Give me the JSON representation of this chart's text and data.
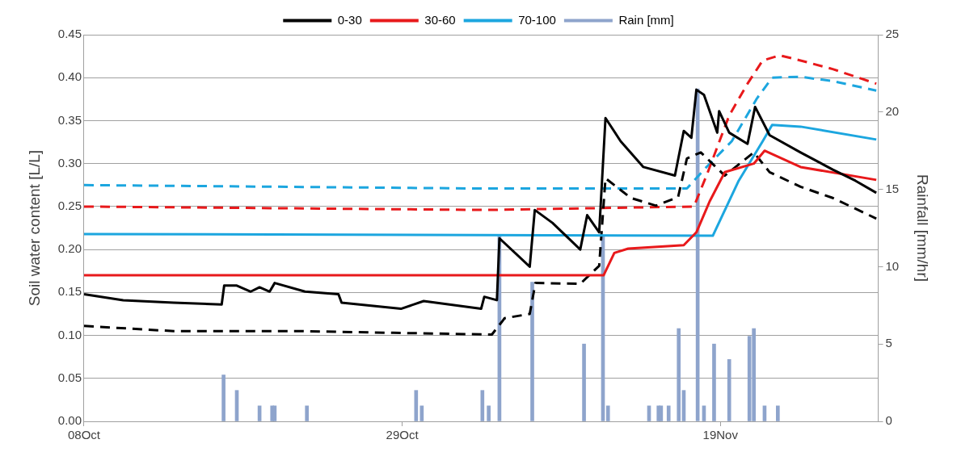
{
  "chart_data": {
    "type": "line",
    "ylabel": "Soil water content [L/L]",
    "y2label": "Rainfall [mm/hr]",
    "legend": "top",
    "grid": "y",
    "xlim": [
      "--10-08",
      "--11-29T10:00"
    ],
    "xticks": [
      {
        "value": "--10-08",
        "label": "08Oct"
      },
      {
        "value": "--10-29",
        "label": "29Oct"
      },
      {
        "value": "--11-19",
        "label": "19Nov"
      }
    ],
    "ylim": [
      0,
      0.45
    ],
    "yticks": [
      {
        "value": 0,
        "label": "0.00"
      },
      {
        "value": 0.05,
        "label": "0.05"
      },
      {
        "value": 0.1,
        "label": "0.10"
      },
      {
        "value": 0.15,
        "label": "0.15"
      },
      {
        "value": 0.2,
        "label": "0.20"
      },
      {
        "value": 0.25,
        "label": "0.25"
      },
      {
        "value": 0.3,
        "label": "0.30"
      },
      {
        "value": 0.35,
        "label": "0.35"
      },
      {
        "value": 0.4,
        "label": "0.40"
      },
      {
        "value": 0.45,
        "label": "0.45"
      }
    ],
    "y2lim": [
      0,
      25
    ],
    "y2ticks": [
      0,
      5,
      10,
      15,
      20,
      25
    ],
    "series": [
      {
        "name": "0-30",
        "color": "#000000",
        "line_style": "solid",
        "x": [
          "--10-08T00:00",
          "--10-10T14:00",
          "--10-13T22:00",
          "--10-17T02:00",
          "--10-17T06:00",
          "--10-18T02:00",
          "--10-19T00:00",
          "--10-19T14:00",
          "--10-20T06:00",
          "--10-20T14:00",
          "--10-22T14:00",
          "--10-24T19:00",
          "--10-25T00:00",
          "--10-28T22:00",
          "--10-30T10:00",
          "--11-03T05:00",
          "--11-03T10:00",
          "--11-04T06:00",
          "--11-04T10:00",
          "--11-06T10:00",
          "--11-06T18:00",
          "--11-07T22:00",
          "--11-09T18:00",
          "--11-10T05:00",
          "--11-11T00:00",
          "--11-11T10:00",
          "--11-12T10:00",
          "--11-13T22:00",
          "--11-16T00:00",
          "--11-16T14:00",
          "--11-17T02:00",
          "--11-17T10:00",
          "--11-17T22:00",
          "--11-18T19:00",
          "--11-18T22:00",
          "--11-19T14:00",
          "--11-20T19:00",
          "--11-21T07:00",
          "--11-22T06:00",
          "--11-24T07:00",
          "--11-26T10:00",
          "--11-27T22:00",
          "--11-29T07:00"
        ],
        "values": [
          0.148,
          0.141,
          0.138,
          0.136,
          0.158,
          0.158,
          0.151,
          0.156,
          0.151,
          0.161,
          0.151,
          0.148,
          0.138,
          0.131,
          0.14,
          0.131,
          0.145,
          0.141,
          0.213,
          0.18,
          0.246,
          0.231,
          0.2,
          0.24,
          0.22,
          0.353,
          0.326,
          0.296,
          0.286,
          0.338,
          0.33,
          0.386,
          0.38,
          0.336,
          0.361,
          0.336,
          0.323,
          0.366,
          0.333,
          0.313,
          0.293,
          0.28,
          0.266
        ]
      },
      {
        "name": "30-60",
        "color": "#e8191b",
        "line_style": "solid",
        "x": [
          "--10-08T00:00",
          "--11-11T07:00",
          "--11-12T00:00",
          "--11-12T22:00",
          "--11-16T14:00",
          "--11-17T10:00",
          "--11-18T07:00",
          "--11-19T07:00",
          "--11-21T05:00",
          "--11-21T22:00",
          "--11-24T07:00",
          "--11-29T07:00"
        ],
        "values": [
          0.17,
          0.17,
          0.196,
          0.201,
          0.205,
          0.22,
          0.256,
          0.29,
          0.3,
          0.315,
          0.296,
          0.281
        ]
      },
      {
        "name": "70-100",
        "color": "#1ca6df",
        "line_style": "solid",
        "x": [
          "--10-08T00:00",
          "--11-18T12:00",
          "--11-20T05:00",
          "--11-21T19:00",
          "--11-22T10:00",
          "--11-24T07:00",
          "--11-29T07:00"
        ],
        "values": [
          0.218,
          0.216,
          0.28,
          0.326,
          0.345,
          0.343,
          0.328
        ]
      },
      {
        "color": "#000000",
        "line_style": "dashed",
        "x": [
          "--10-08T00:00",
          "--10-13T22:00",
          "--10-22T05:00",
          "--10-28T10:00",
          "--11-03T22:00",
          "--11-04T14:00",
          "--11-04T18:00",
          "--11-06T10:00",
          "--11-06T19:00",
          "--11-09T18:00",
          "--11-11T00:00",
          "--11-11T10:00",
          "--11-13T02:00",
          "--11-14T18:00",
          "--11-16T05:00",
          "--11-16T19:00",
          "--11-17T17:00",
          "--11-19T07:00",
          "--11-21T05:00",
          "--11-22T06:00",
          "--11-24T07:00",
          "--11-26T10:00",
          "--11-29T07:00"
        ],
        "values": [
          0.111,
          0.105,
          0.105,
          0.103,
          0.101,
          0.116,
          0.12,
          0.125,
          0.161,
          0.16,
          0.181,
          0.283,
          0.26,
          0.251,
          0.261,
          0.306,
          0.313,
          0.286,
          0.313,
          0.29,
          0.273,
          0.26,
          0.236
        ]
      },
      {
        "color": "#e8191b",
        "line_style": "dashed",
        "x": [
          "--10-08T00:00",
          "--11-03T12:00",
          "--11-17T06:00",
          "--11-18T02:00",
          "--11-19T14:00",
          "--11-20T19:00",
          "--11-21T19:00",
          "--11-22T22:00",
          "--11-24T07:00",
          "--11-26T10:00",
          "--11-29T07:00"
        ],
        "values": [
          0.25,
          0.246,
          0.25,
          0.286,
          0.356,
          0.393,
          0.42,
          0.426,
          0.42,
          0.41,
          0.393
        ]
      },
      {
        "color": "#1ca6df",
        "line_style": "dashed",
        "x": [
          "--10-08T00:00",
          "--11-03T00:00",
          "--11-16T19:00",
          "--11-18T02:00",
          "--11-19T18:00",
          "--11-21T10:00",
          "--11-22T10:00",
          "--11-24T07:00",
          "--11-26T10:00",
          "--11-29T07:00"
        ],
        "values": [
          0.275,
          0.271,
          0.271,
          0.296,
          0.326,
          0.376,
          0.4,
          0.401,
          0.396,
          0.385
        ]
      },
      {
        "name": "Rain [mm]",
        "type": "bar",
        "axis": "y2",
        "color": "#8ea4cc",
        "x": [
          "--10-17T05:00",
          "--10-18T02:00",
          "--10-19T14:00",
          "--10-20T10:00",
          "--10-20T14:00",
          "--10-22T17:00",
          "--10-29T22:00",
          "--10-30T07:00",
          "--11-03T07:00",
          "--11-03T17:00",
          "--11-04T10:00",
          "--11-06T14:00",
          "--11-10T00:00",
          "--11-11T06:00",
          "--11-11T14:00",
          "--11-14T07:00",
          "--11-14T22:00",
          "--11-15T02:00",
          "--11-15T14:00",
          "--11-16T06:00",
          "--11-16T14:00",
          "--11-17T12:00",
          "--11-17T22:00",
          "--11-18T14:00",
          "--11-19T14:00",
          "--11-20T22:00",
          "--11-21T05:00",
          "--11-21T22:00",
          "--11-22T19:00"
        ],
        "values": [
          3,
          2,
          1,
          1,
          1,
          1,
          2,
          1,
          2,
          1,
          12,
          9,
          5,
          12,
          1,
          1,
          1,
          1,
          1,
          6,
          2,
          21.5,
          1,
          5,
          4,
          5.5,
          6,
          1,
          1
        ]
      }
    ]
  }
}
